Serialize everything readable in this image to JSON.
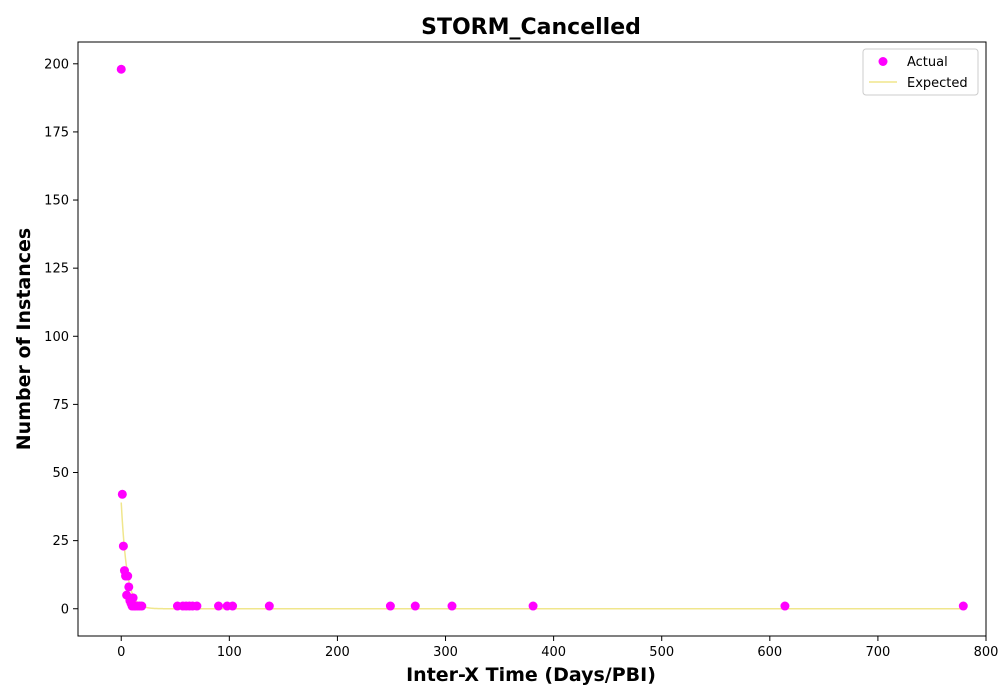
{
  "chart_data": {
    "type": "scatter",
    "title": "STORM_Cancelled",
    "xlabel": "Inter-X Time (Days/PBI)",
    "ylabel": "Number of Instances",
    "xlim": [
      -40,
      800
    ],
    "ylim": [
      -10,
      208
    ],
    "xticks": [
      0,
      100,
      200,
      300,
      400,
      500,
      600,
      700,
      800
    ],
    "yticks": [
      0,
      25,
      50,
      75,
      100,
      125,
      150,
      175,
      200
    ],
    "grid": false,
    "legend_position": "top-right",
    "series": [
      {
        "name": "Actual",
        "kind": "scatter",
        "color": "#ff00ff",
        "points": [
          [
            0,
            198
          ],
          [
            1,
            42
          ],
          [
            2,
            23
          ],
          [
            3,
            14
          ],
          [
            4,
            12
          ],
          [
            5,
            5
          ],
          [
            6,
            12
          ],
          [
            7,
            8
          ],
          [
            8,
            3
          ],
          [
            9,
            2
          ],
          [
            10,
            1
          ],
          [
            11,
            4
          ],
          [
            12,
            1
          ],
          [
            13,
            1
          ],
          [
            15,
            1
          ],
          [
            17,
            1
          ],
          [
            19,
            1
          ],
          [
            52,
            1
          ],
          [
            57,
            1
          ],
          [
            60,
            1
          ],
          [
            63,
            1
          ],
          [
            66,
            1
          ],
          [
            70,
            1
          ],
          [
            90,
            1
          ],
          [
            98,
            1
          ],
          [
            103,
            1
          ],
          [
            137,
            1
          ],
          [
            249,
            1
          ],
          [
            272,
            1
          ],
          [
            306,
            1
          ],
          [
            381,
            1
          ],
          [
            614,
            1
          ],
          [
            779,
            1
          ]
        ]
      },
      {
        "name": "Expected",
        "kind": "line",
        "color": "#f0e68c",
        "model": {
          "amplitude": 39,
          "rate": 0.19,
          "x_start": 0,
          "x_end": 779
        }
      }
    ]
  }
}
